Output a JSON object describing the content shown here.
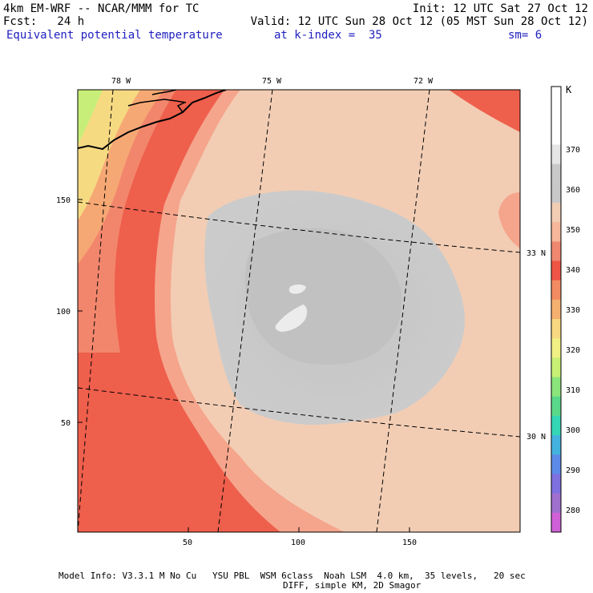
{
  "header": {
    "line1_left": "4km EM-WRF -- NCAR/MMM for TC",
    "line1_right": "Init: 12 UTC Sat 27 Oct 12",
    "line2_left": "Fcst:   24 h",
    "line2_right": "Valid: 12 UTC Sun 28 Oct 12 (05 MST Sun 28 Oct 12)",
    "field_title": "Equivalent potential temperature",
    "k_index_label": "at k-index =  35",
    "smoothing": "sm= 6"
  },
  "map": {
    "top_lon_labels": [
      "78 W",
      "75 W",
      "72 W"
    ],
    "right_lat_labels": [
      "33 N",
      "30 N"
    ],
    "x_ticks": [
      "50",
      "100",
      "150"
    ],
    "y_ticks": [
      "150",
      "100",
      "50"
    ]
  },
  "colorbar": {
    "unit": "K",
    "labels": [
      "370",
      "360",
      "350",
      "340",
      "330",
      "320",
      "310",
      "300",
      "290",
      "280"
    ],
    "colors": [
      "#ffffff",
      "#ffffff",
      "#ffffff",
      "#e6e6e6",
      "#c9c9c9",
      "#c8c8c8",
      "#f2cdb4",
      "#f7b79a",
      "#f08870",
      "#ee5545",
      "#f38b60",
      "#f5b070",
      "#f8d880",
      "#f0f085",
      "#c8f075",
      "#8ae57a",
      "#5ad88a",
      "#35d6b5",
      "#44b2de",
      "#5c8ae8",
      "#7f70e0",
      "#a070d0",
      "#d060d8"
    ]
  },
  "footer": {
    "line1": "Model Info: V3.3.1 M No Cu   YSU PBL  WSM 6class  Noah LSM  4.0 km,  35 levels,   20 sec",
    "line2": "DIFF, simple KM, 2D Smagor"
  }
}
